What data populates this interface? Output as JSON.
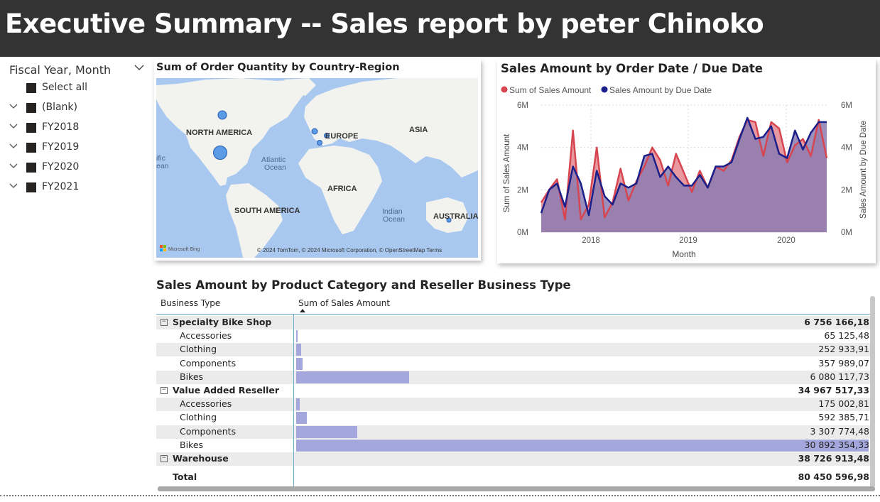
{
  "header": {
    "title": "Executive Summary -- Sales report by peter Chinoko"
  },
  "slicer": {
    "title": "Fiscal Year, Month",
    "items": [
      {
        "label": "Select all"
      },
      {
        "label": "(Blank)"
      },
      {
        "label": "FY2018"
      },
      {
        "label": "FY2019"
      },
      {
        "label": "FY2020"
      },
      {
        "label": "FY2021"
      }
    ]
  },
  "map": {
    "title": "Sum of Order Quantity by Country-Region",
    "labels": {
      "north_america": "NORTH AMERICA",
      "europe": "EUROPE",
      "asia": "ASIA",
      "atlantic": "Atlantic",
      "ocean": "Ocean",
      "africa": "AFRICA",
      "south_america": "SOUTH AMERICA",
      "indian": "Indian",
      "indian_ocean": "Ocean",
      "australia": "AUSTRALIA",
      "pacific_1": "ific",
      "pacific_2": "ean"
    },
    "brand": "Microsoft Bing",
    "attribution": "© 2024 TomTom, © 2024 Microsoft Corporation, © OpenStreetMap  Terms"
  },
  "line_chart": {
    "title": "Sales Amount by Order Date / Due Date",
    "legend": [
      "Sum of Sales Amount",
      "Sales Amount by Due Date"
    ],
    "colors": {
      "series1": "#d64550",
      "series2": "#1a1f8a",
      "area": "#8c7bb0"
    },
    "y_ticks": [
      "0M",
      "2M",
      "4M",
      "6M"
    ],
    "x_ticks": [
      "2018",
      "2019",
      "2020"
    ],
    "xlabel": "Month",
    "ylabel_left": "Sum of Sales Amount",
    "ylabel_right": "Sales Amount by Due Date"
  },
  "chart_data": {
    "type": "line",
    "x_range": [
      "2017-07",
      "2020-06"
    ],
    "ylim": [
      0,
      6
    ],
    "y_units": "M",
    "series": [
      {
        "name": "Sum of Sales Amount",
        "values": [
          1.4,
          2.0,
          2.5,
          0.6,
          4.8,
          0.6,
          1.3,
          4.0,
          0.7,
          1.4,
          3.0,
          1.5,
          2.4,
          3.1,
          4.0,
          3.4,
          2.2,
          3.7,
          2.8,
          1.9,
          2.9,
          2.1,
          3.1,
          2.9,
          3.4,
          4.5,
          5.3,
          5.2,
          3.6,
          5.2,
          4.9,
          3.3,
          4.1,
          4.4,
          3.6,
          5.3,
          3.5
        ]
      },
      {
        "name": "Sales Amount by Due Date",
        "values": [
          0.9,
          2.0,
          2.3,
          1.2,
          3.1,
          2.3,
          0.8,
          2.9,
          1.7,
          1.3,
          2.3,
          2.1,
          2.3,
          3.6,
          3.7,
          2.6,
          3.1,
          2.6,
          2.2,
          2.2,
          2.7,
          2.1,
          3.1,
          3.1,
          3.3,
          4.4,
          5.4,
          4.4,
          4.5,
          5.0,
          3.7,
          3.5,
          4.8,
          3.9,
          4.7,
          5.2,
          5.2
        ]
      }
    ]
  },
  "table": {
    "title": "Sales Amount by Product Category and Reseller Business Type",
    "col1": "Business Type",
    "col2": "Sum of Sales Amount",
    "max_value": 30892354.33,
    "rows": [
      {
        "type": "group",
        "name": "Specialty Bike Shop",
        "value": "6 756 166,18",
        "amount": 6756166.18
      },
      {
        "type": "item",
        "name": "Accessories",
        "value": "65 125,48",
        "amount": 65125.48
      },
      {
        "type": "item",
        "name": "Clothing",
        "value": "252 933,91",
        "amount": 252933.91
      },
      {
        "type": "item",
        "name": "Components",
        "value": "357 989,07",
        "amount": 357989.07
      },
      {
        "type": "item",
        "name": "Bikes",
        "value": "6 080 117,73",
        "amount": 6080117.73
      },
      {
        "type": "group",
        "name": "Value Added Reseller",
        "value": "34 967 517,33",
        "amount": 34967517.33
      },
      {
        "type": "item",
        "name": "Accessories",
        "value": "175 002,81",
        "amount": 175002.81
      },
      {
        "type": "item",
        "name": "Clothing",
        "value": "592 385,71",
        "amount": 592385.71
      },
      {
        "type": "item",
        "name": "Components",
        "value": "3 307 774,48",
        "amount": 3307774.48
      },
      {
        "type": "item",
        "name": "Bikes",
        "value": "30 892 354,33",
        "amount": 30892354.33
      },
      {
        "type": "group",
        "name": "Warehouse",
        "value": "38 726 913,48",
        "amount": 38726913.48
      }
    ],
    "total": {
      "name": "Total",
      "value": "80 450 596,98"
    }
  }
}
